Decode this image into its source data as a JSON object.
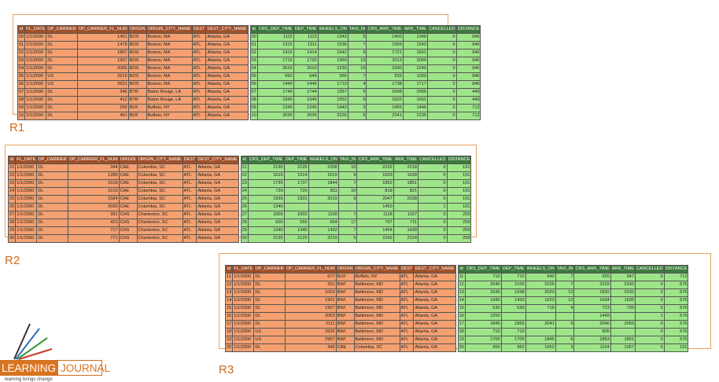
{
  "left_headers": [
    "id",
    "FL_DATE",
    "OP_CARRIER",
    "OP_CARRIER_FL_NUM",
    "ORIGIN",
    "ORIGIN_CITY_NAME",
    "DEST",
    "DEST_CITY_NAME"
  ],
  "right_headers": [
    "id",
    "CRS_DEP_TIME",
    "DEP_TIME",
    "WHEELS_ON",
    "TAXI_IN",
    "CRS_ARR_TIME",
    "ARR_TIME",
    "CANCELLED",
    "DISTANCE"
  ],
  "panels": [
    {
      "label": "R1",
      "left_rows": [
        [
          "00",
          "1/1/2000",
          "DL",
          "1451",
          "BOS",
          "Boston, MA",
          "ATL",
          "Atlanta, GA"
        ],
        [
          "01",
          "1/1/2000",
          "DL",
          "1479",
          "BOS",
          "Boston, MA",
          "ATL",
          "Atlanta, GA"
        ],
        [
          "02",
          "1/1/2000",
          "DL",
          "1857",
          "BOS",
          "Boston, MA",
          "ATL",
          "Atlanta, GA"
        ],
        [
          "03",
          "1/1/2000",
          "DL",
          "1997",
          "BOS",
          "Boston, MA",
          "ATL",
          "Atlanta, GA"
        ],
        [
          "04",
          "1/1/2000",
          "DL",
          "2065",
          "BOS",
          "Boston, MA",
          "ATL",
          "Atlanta, GA"
        ],
        [
          "05",
          "1/1/2000",
          "US",
          "2619",
          "BOS",
          "Boston, MA",
          "ATL",
          "Atlanta, GA"
        ],
        [
          "06",
          "1/1/2000",
          "US",
          "2621",
          "BOS",
          "Boston, MA",
          "ATL",
          "Atlanta, GA"
        ],
        [
          "07",
          "1/1/2000",
          "DL",
          "346",
          "BTR",
          "Baton Rouge, LA",
          "ATL",
          "Atlanta, GA"
        ],
        [
          "08",
          "1/1/2000",
          "DL",
          "412",
          "BTR",
          "Baton Rouge, LA",
          "ATL",
          "Atlanta, GA"
        ],
        [
          "09",
          "1/1/2000",
          "DL",
          "299",
          "BUF",
          "Buffalo, NY",
          "ATL",
          "Atlanta, GA"
        ],
        [
          "10",
          "1/1/2000",
          "DL",
          "461",
          "BUF",
          "Buffalo, NY",
          "ATL",
          "Atlanta, GA"
        ]
      ],
      "right_rows": [
        [
          "00",
          "1115",
          "1113",
          "1343",
          "5",
          "1400",
          "1346",
          "0",
          "946"
        ],
        [
          "01",
          "1315",
          "1311",
          "1536",
          "7",
          "1559",
          "1543",
          "0",
          "946"
        ],
        [
          "02",
          "1415",
          "1414",
          "1642",
          "9",
          "1721",
          "1651",
          "0",
          "946"
        ],
        [
          "03",
          "1715",
          "1720",
          "1950",
          "10",
          "2013",
          "2000",
          "0",
          "946"
        ],
        [
          "04",
          "2015",
          "2010",
          "2230",
          "10",
          "2300",
          "2240",
          "0",
          "946"
        ],
        [
          "05",
          "650",
          "649",
          "956",
          "7",
          "935",
          "1003",
          "0",
          "946"
        ],
        [
          "06",
          "1440",
          "1446",
          "1713",
          "4",
          "1738",
          "1717",
          "0",
          "946"
        ],
        [
          "07",
          "1740",
          "1744",
          "1957",
          "9",
          "2008",
          "2006",
          "0",
          "449"
        ],
        [
          "08",
          "1945",
          "1945",
          "1552",
          "9",
          "1622",
          "1601",
          "0",
          "449"
        ],
        [
          "09",
          "1245",
          "1245",
          "1443",
          "3",
          "1455",
          "1446",
          "0",
          "712"
        ],
        [
          "10",
          "2035",
          "2035",
          "2226",
          "9",
          "2241",
          "2235",
          "0",
          "712"
        ]
      ]
    },
    {
      "label": "R2",
      "left_rows": [
        [
          "21",
          "1/1/2000",
          "DL",
          "344",
          "CAE",
          "Columbia, SC",
          "ATL",
          "Atlanta, GA"
        ],
        [
          "22",
          "1/1/2000",
          "DL",
          "1286",
          "CAE",
          "Columbia, SC",
          "ATL",
          "Atlanta, GA"
        ],
        [
          "23",
          "1/1/2000",
          "DL",
          "1518",
          "CAE",
          "Columbia, SC",
          "ATL",
          "Atlanta, GA"
        ],
        [
          "24",
          "1/1/2000",
          "DL",
          "1519",
          "CAE",
          "Columbia, SC",
          "ATL",
          "Atlanta, GA"
        ],
        [
          "25",
          "1/1/2000",
          "DL",
          "1564",
          "CAE",
          "Columbia, SC",
          "ATL",
          "Atlanta, GA"
        ],
        [
          "26",
          "1/1/2000",
          "DL",
          "2030",
          "CAE",
          "Columbia, SC",
          "ATL",
          "Atlanta, GA"
        ],
        [
          "27",
          "1/1/2000",
          "DL",
          "391",
          "CHS",
          "Charleston, SC",
          "ATL",
          "Atlanta, GA"
        ],
        [
          "28",
          "1/1/2000",
          "DL",
          "423",
          "CHS",
          "Charleston, SC",
          "ATL",
          "Atlanta, GA"
        ],
        [
          "29",
          "1/1/2000",
          "DL",
          "717",
          "CHS",
          "Charleston, SC",
          "ATL",
          "Atlanta, GA"
        ],
        [
          "30",
          "1/1/2000",
          "DL",
          "771",
          "CHS",
          "Charleston, SC",
          "ATL",
          "Atlanta, GA"
        ]
      ],
      "right_rows": [
        [
          "21",
          "2130",
          "2125",
          "2208",
          "10",
          "2232",
          "2218",
          "0",
          "191"
        ],
        [
          "22",
          "1515",
          "1514",
          "1619",
          "9",
          "1633",
          "1628",
          "0",
          "191"
        ],
        [
          "23",
          "1735",
          "1737",
          "1844",
          "7",
          "1852",
          "1851",
          "0",
          "191"
        ],
        [
          "24",
          "720",
          "720",
          "811",
          "10",
          "818",
          "821",
          "0",
          "191"
        ],
        [
          "25",
          "1935",
          "1931",
          "2019",
          "9",
          "2047",
          "2028",
          "0",
          "191"
        ],
        [
          "26",
          "1340",
          "",
          "",
          "",
          "1450",
          "",
          "1",
          "191"
        ],
        [
          "27",
          "1005",
          "1002",
          "1100",
          "7",
          "1118",
          "1107",
          "0",
          "259"
        ],
        [
          "28",
          "600",
          "556",
          "654",
          "17",
          "707",
          "711",
          "0",
          "259"
        ],
        [
          "29",
          "1340",
          "1340",
          "1432",
          "7",
          "1454",
          "1439",
          "0",
          "259"
        ],
        [
          "30",
          "2135",
          "2125",
          "2219",
          "5",
          "2242",
          "2224",
          "0",
          "259"
        ]
      ]
    },
    {
      "label": "R3",
      "left_rows": [
        [
          "11",
          "1/1/2000",
          "DL",
          "677",
          "BUF",
          "Buffalo, NY",
          "ATL",
          "Atlanta, GA"
        ],
        [
          "12",
          "1/1/2000",
          "DL",
          "251",
          "BWI",
          "Baltimore, MD",
          "ATL",
          "Atlanta, GA"
        ],
        [
          "13",
          "1/1/2000",
          "DL",
          "1003",
          "BWI",
          "Baltimore, MD",
          "ATL",
          "Atlanta, GA"
        ],
        [
          "14",
          "1/1/2000",
          "DL",
          "1901",
          "BWI",
          "Baltimore, MD",
          "ATL",
          "Atlanta, GA"
        ],
        [
          "15",
          "1/1/2000",
          "DL",
          "1907",
          "BWI",
          "Baltimore, MD",
          "ATL",
          "Atlanta, GA"
        ],
        [
          "16",
          "1/1/2000",
          "DL",
          "2063",
          "BWI",
          "Baltimore, MD",
          "ATL",
          "Atlanta, GA"
        ],
        [
          "17",
          "1/1/2000",
          "DL",
          "2111",
          "BWI",
          "Baltimore, MD",
          "ATL",
          "Atlanta, GA"
        ],
        [
          "18",
          "1/1/2000",
          "US",
          "2632",
          "BWI",
          "Baltimore, MD",
          "ATL",
          "Atlanta, GA"
        ],
        [
          "19",
          "1/1/2000",
          "US",
          "2967",
          "BWI",
          "Baltimore, MD",
          "ATL",
          "Atlanta, GA"
        ],
        [
          "20",
          "1/1/2000",
          "DL",
          "340",
          "CAE",
          "Columbia, SC",
          "ATL",
          "Atlanta, GA"
        ]
      ],
      "right_rows": [
        [
          "11",
          "710",
          "710",
          "940",
          "7",
          "925",
          "947",
          "0",
          "712"
        ],
        [
          "12",
          "2040",
          "2100",
          "2235",
          "7",
          "2233",
          "2242",
          "0",
          "576"
        ],
        [
          "13",
          "1635",
          "1638",
          "2020",
          "12",
          "1832",
          "2032",
          "0",
          "576"
        ],
        [
          "14",
          "1430",
          "1433",
          "1623",
          "12",
          "1634",
          "1635",
          "0",
          "576"
        ],
        [
          "15",
          "530",
          "530",
          "716",
          "4",
          "723",
          "720",
          "0",
          "576"
        ],
        [
          "16",
          "1250",
          "",
          "",
          "",
          "1449",
          "",
          "1",
          "576"
        ],
        [
          "17",
          "1845",
          "1855",
          "2041",
          "9",
          "2046",
          "2050",
          "0",
          "576"
        ],
        [
          "18",
          "710",
          "710",
          "",
          "",
          "905",
          "",
          "0",
          "576"
        ],
        [
          "19",
          "1700",
          "1700",
          "1845",
          "6",
          "1853",
          "1851",
          "0",
          "576"
        ],
        [
          "20",
          "950",
          "952",
          "1052",
          "3",
          "1104",
          "1057",
          "0",
          "191"
        ]
      ]
    }
  ],
  "logo": {
    "word1": "LEARNING",
    "word2": "JOURNAL",
    "tagline": "learning brings change"
  }
}
